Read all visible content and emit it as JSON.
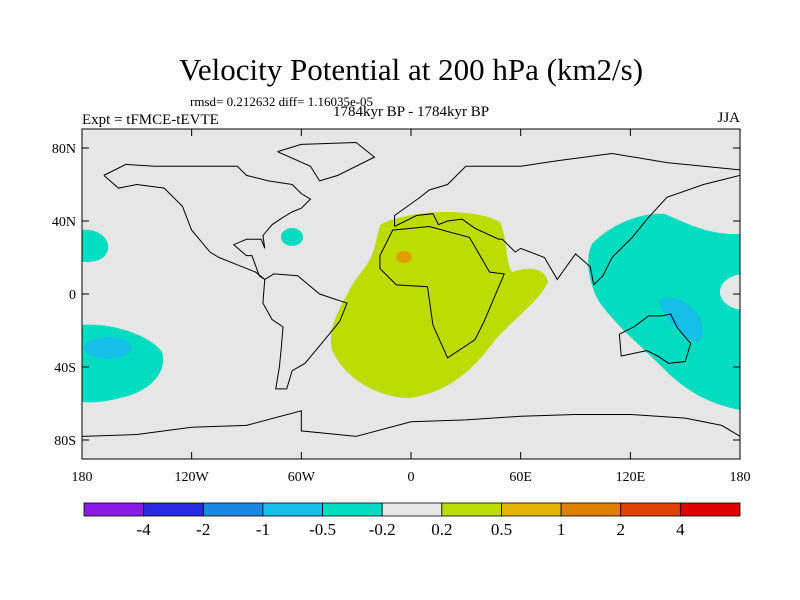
{
  "title": "Velocity Potential at 200 hPa (km2/s)",
  "stats": "rmsd= 0.212632 diff= 1.16035e-05",
  "left_label": "Expt = tFMCE-tEVTE",
  "center_label": "1784kyr BP - 1784kyr BP",
  "right_label": "JJA",
  "x_ticks": [
    {
      "lon": -180,
      "label": "180"
    },
    {
      "lon": -120,
      "label": "120W"
    },
    {
      "lon": -60,
      "label": "60W"
    },
    {
      "lon": 0,
      "label": "0"
    },
    {
      "lon": 60,
      "label": "60E"
    },
    {
      "lon": 120,
      "label": "120E"
    },
    {
      "lon": 180,
      "label": "180"
    }
  ],
  "y_ticks": [
    {
      "lat": 80,
      "label": "80N"
    },
    {
      "lat": 40,
      "label": "40N"
    },
    {
      "lat": 0,
      "label": "0"
    },
    {
      "lat": -40,
      "label": "40S"
    },
    {
      "lat": -80,
      "label": "80S"
    }
  ],
  "colorbar": {
    "colors": [
      "#8a1ae6",
      "#2a2ae0",
      "#1a88e0",
      "#14c0e6",
      "#00dcc0",
      "#e6e6e6",
      "#bcdc00",
      "#e0b400",
      "#e08000",
      "#e04000",
      "#e00000"
    ],
    "labels": [
      "-4",
      "-2",
      "-1",
      "-0.5",
      "-0.2",
      "0.2",
      "0.5",
      "1",
      "2",
      "4"
    ]
  },
  "colors": {
    "ocean_land_bg": "#e6e6e6",
    "neg_weak": "#00dcc0",
    "neg_mid": "#14c0e6",
    "pos_weak": "#bcdc00",
    "pos_mid": "#e0a000"
  }
}
